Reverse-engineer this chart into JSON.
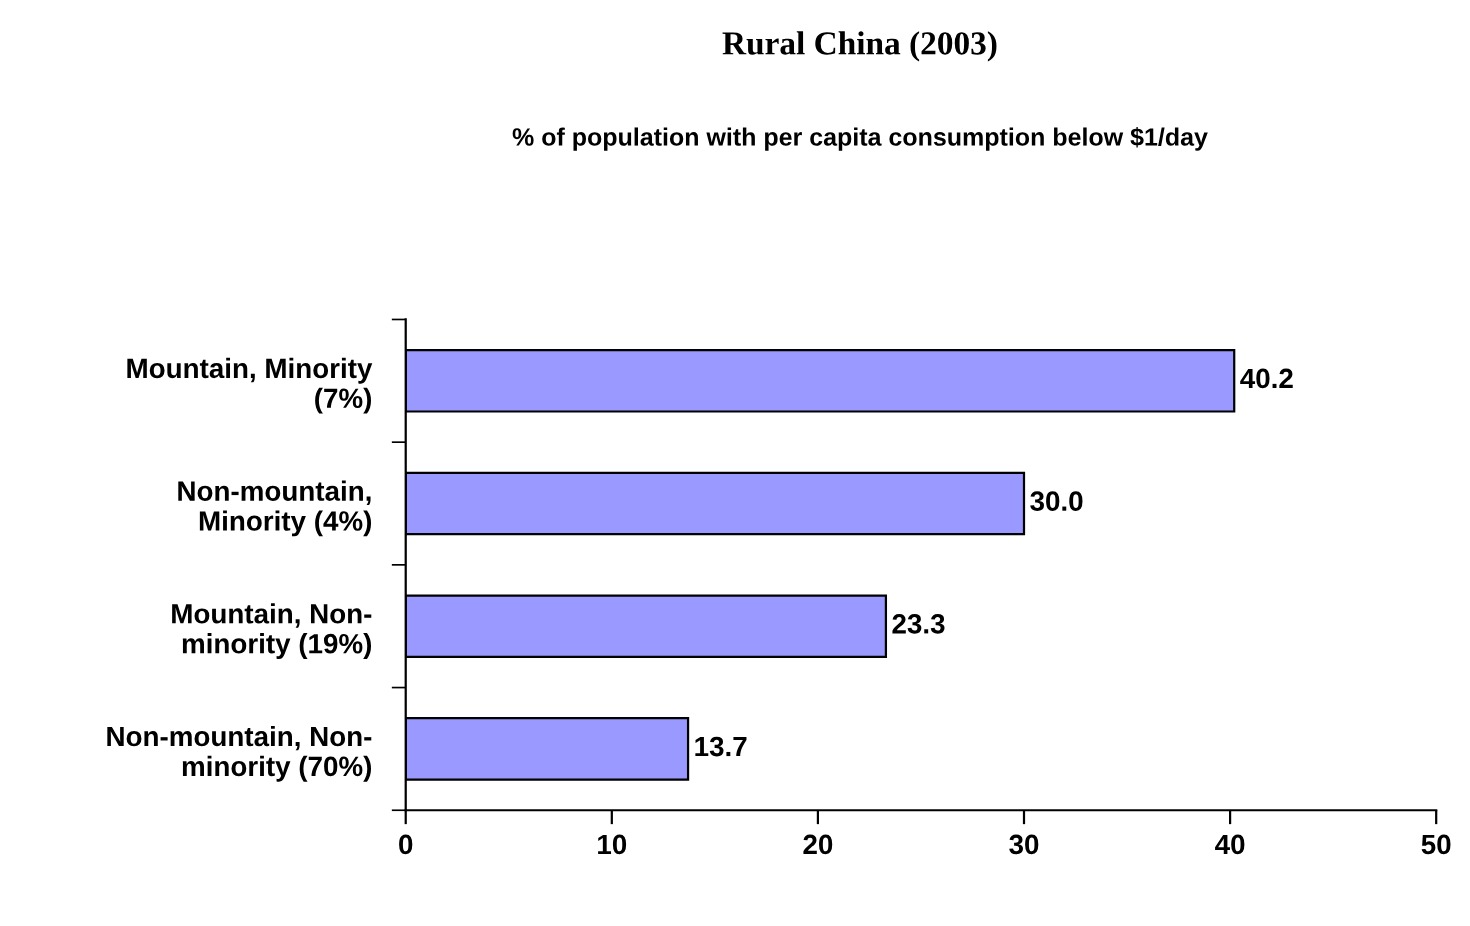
{
  "chart_data": {
    "type": "bar",
    "orientation": "horizontal",
    "title": "Rural China (2003)",
    "subtitle": "% of population with per capita consumption below $1/day",
    "categories": [
      "Mountain, Minority\n(7%)",
      "Non-mountain,\nMinority (4%)",
      "Mountain, Non-\nminority (19%)",
      "Non-mountain, Non-\nminority (70%)"
    ],
    "values": [
      40.2,
      30.0,
      23.3,
      13.7
    ],
    "color": "#9999ff",
    "value_labels": [
      "40.2",
      "30.0",
      "23.3",
      "13.7"
    ],
    "xlim": [
      0,
      50
    ],
    "xticks": [
      0,
      10,
      20,
      30,
      40,
      50
    ],
    "grid": false
  }
}
